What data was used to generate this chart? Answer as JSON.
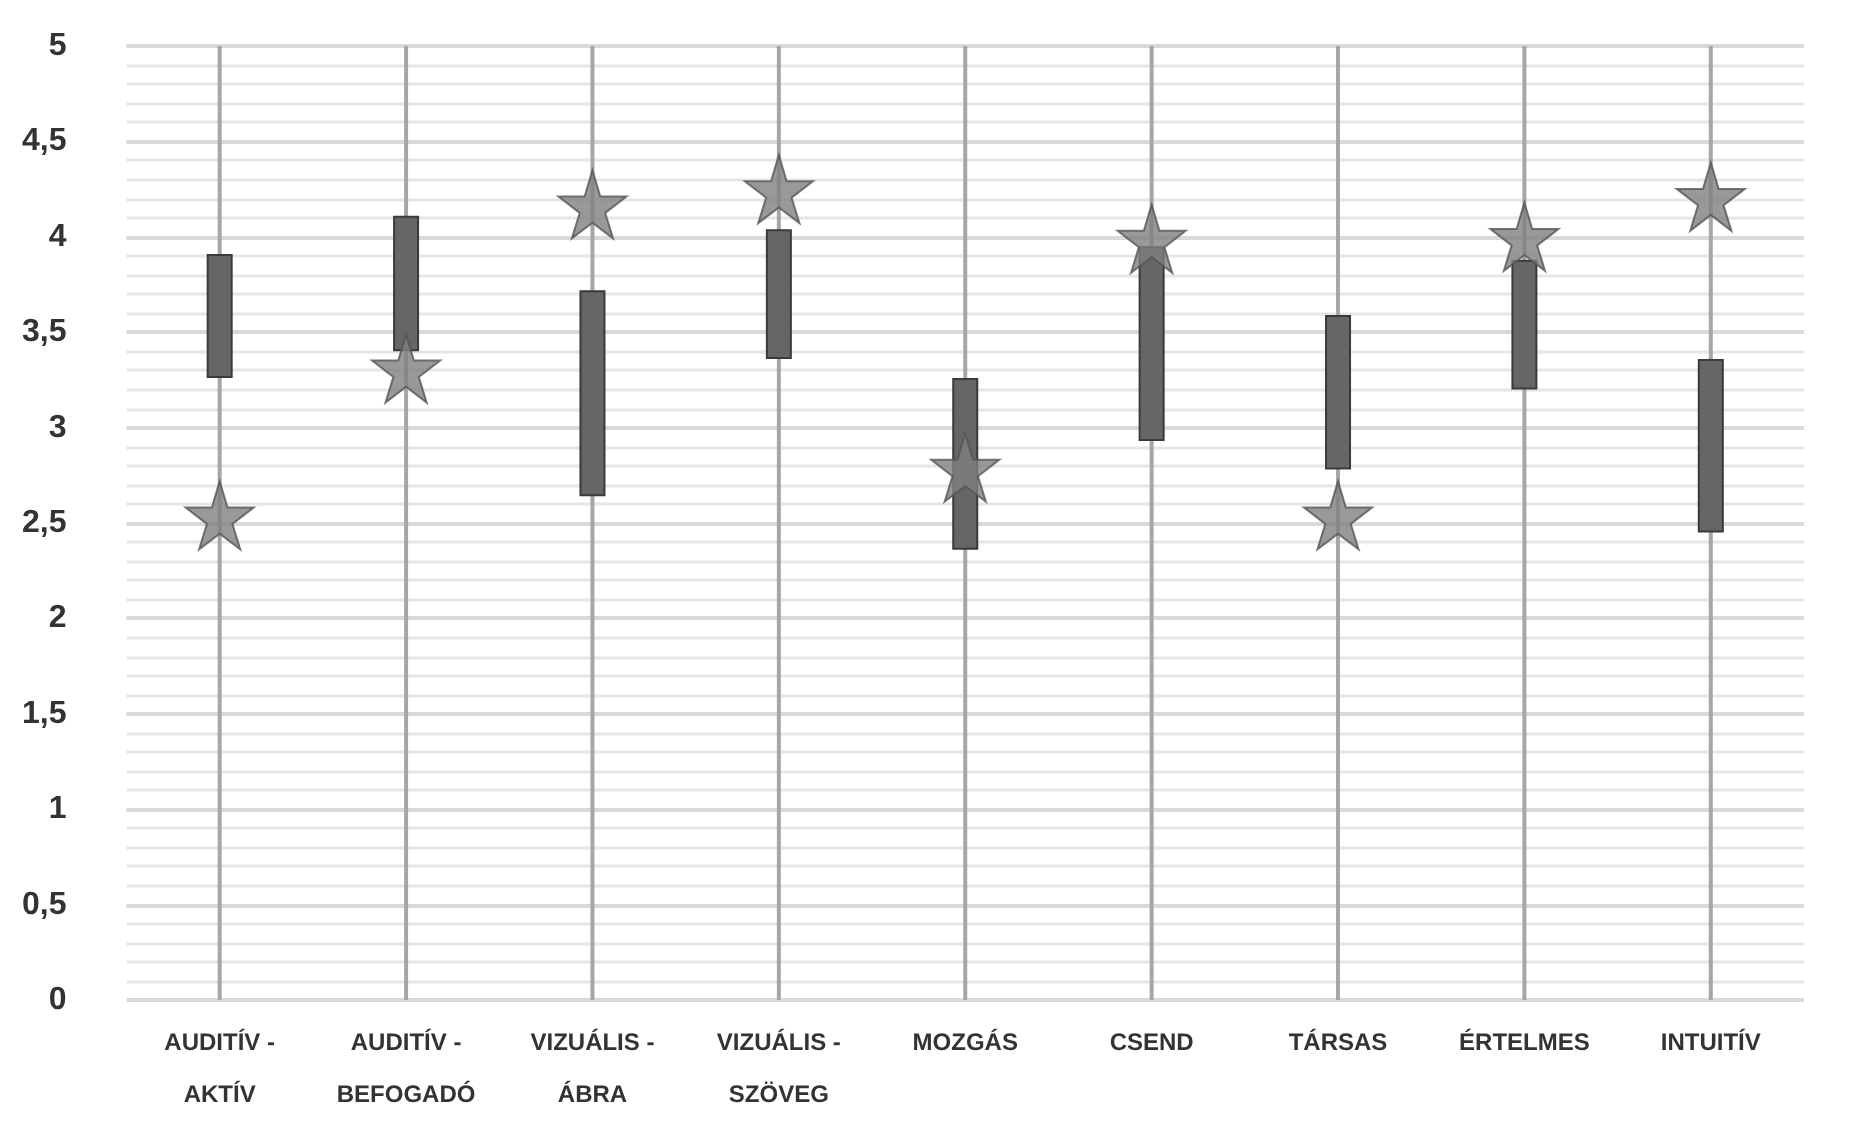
{
  "chart_data": {
    "type": "bar",
    "categories": [
      "AUDITÍV - AKTÍV",
      "AUDITÍV - BEFOGADÓ",
      "VIZUÁLIS - ÁBRA",
      "VIZUÁLIS - SZÖVEG",
      "MOZGÁS",
      "CSEND",
      "TÁRSAS",
      "ÉRTELMES",
      "INTUITÍV"
    ],
    "series": [
      {
        "color": "#a6a6a6",
        "base": [
          0,
          0,
          0,
          0,
          0,
          0,
          0,
          0,
          0
        ],
        "values": [
          5,
          5,
          5,
          5,
          5,
          5,
          5,
          5,
          5
        ]
      },
      {
        "color": "#666666",
        "base": [
          3.26,
          3.4,
          2.64,
          3.36,
          2.36,
          2.93,
          2.78,
          3.2,
          2.45
        ],
        "values": [
          0.65,
          0.71,
          1.08,
          0.68,
          0.9,
          1.02,
          0.81,
          0.68,
          0.91
        ]
      },
      {
        "type": "scatter",
        "color": "#808080",
        "marker": "star",
        "x": [
          "AUDITÍV - AKTÍV",
          "AUDITÍV - BEFOGADÓ",
          "VIZUÁLIS - ÁBRA",
          "VIZUÁLIS - SZÖVEG",
          "MOZGÁS",
          "CSEND",
          "TÁRSAS",
          "ÉRTELMES",
          "INTUITÍV"
        ],
        "values": [
          2.54,
          3.31,
          4.17,
          4.25,
          2.79,
          3.99,
          2.54,
          4.0,
          4.21
        ]
      }
    ],
    "ylim": [
      0,
      5
    ],
    "yticks": [
      0,
      {
        "value": 0.5,
        "label": "0,5"
      },
      1,
      {
        "value": 1.5,
        "label": "1,5"
      },
      2,
      {
        "value": 2.5,
        "label": "2,5"
      },
      3,
      {
        "value": 3.5,
        "label": "3,5"
      },
      4,
      {
        "value": 4.5,
        "label": "4,5"
      },
      5
    ],
    "grid": "y"
  }
}
